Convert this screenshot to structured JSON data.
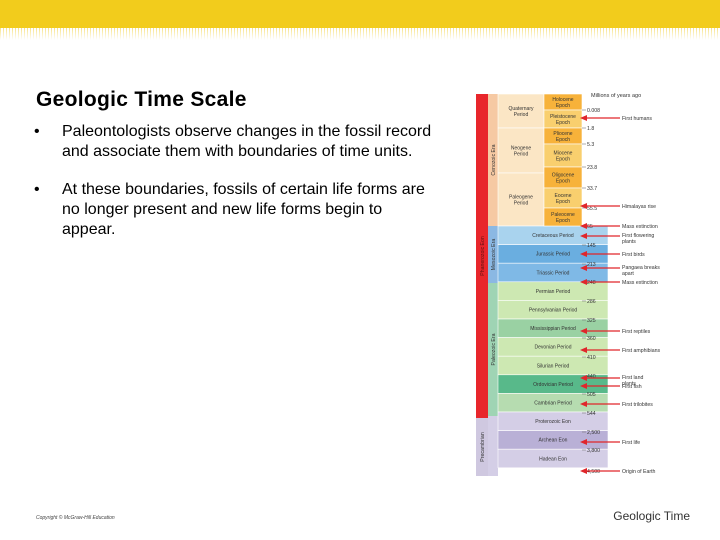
{
  "slide": {
    "title": "Geologic Time Scale",
    "bullets": [
      "Paleontologists observe changes in the fossil record and associate them with boundaries of time units.",
      "At these boundaries, fossils of certain life forms are no longer present and new life forms begin to appear."
    ],
    "bullet_symbol": "•",
    "copyright": "Copyright © McGraw-Hill Education",
    "footer": "Geologic Time"
  },
  "timescale": {
    "header": "Millions of years ago",
    "eons": [
      {
        "label": "Phanerozoic Eon",
        "color": "#e8262b"
      },
      {
        "label": "Precambrian",
        "color": "#cfc8e0"
      }
    ],
    "eras": [
      {
        "label": "Cenozoic Era",
        "color": "#f6c9a3"
      },
      {
        "label": "Mesozoic Era",
        "color": "#8bb8e3"
      },
      {
        "label": "Paleozoic Era",
        "color": "#9fd4b4"
      }
    ],
    "periods": [
      {
        "label": "Quaternary Period",
        "color": "#fbe6c5"
      },
      {
        "label": "Neogene Period",
        "color": "#fbe6c5"
      },
      {
        "label": "Paleogene Period",
        "color": "#fbe6c5"
      },
      {
        "label": "Cretaceous Period",
        "color": "#a9d3ee"
      },
      {
        "label": "Jurassic Period",
        "color": "#6aaee0"
      },
      {
        "label": "Triassic Period",
        "color": "#7fb9e6"
      },
      {
        "label": "Permian Period",
        "color": "#cde8b2"
      },
      {
        "label": "Pennsylvanian Period",
        "color": "#cde8b2"
      },
      {
        "label": "Mississippian Period",
        "color": "#9ad1a3"
      },
      {
        "label": "Devonian Period",
        "color": "#cde8b2"
      },
      {
        "label": "Silurian Period",
        "color": "#cde8b2"
      },
      {
        "label": "Ordovician Period",
        "color": "#58b98a"
      },
      {
        "label": "Cambrian Period",
        "color": "#b6dcb0"
      },
      {
        "label": "Proterozoic Eon",
        "color": "#d4cee6"
      },
      {
        "label": "Archean Eon",
        "color": "#b9b0d6"
      },
      {
        "label": "Hadean Eon",
        "color": "#d4cee6"
      }
    ],
    "epochs": [
      {
        "label": "Holocene Epoch",
        "color": "#f7b23a"
      },
      {
        "label": "Pleistocene Epoch",
        "color": "#f9cf6e"
      },
      {
        "label": "Pliocene Epoch",
        "color": "#f7b23a"
      },
      {
        "label": "Miocene Epoch",
        "color": "#f9cf6e"
      },
      {
        "label": "Oligocene Epoch",
        "color": "#f7b23a"
      },
      {
        "label": "Eocene Epoch",
        "color": "#f9cf6e"
      },
      {
        "label": "Paleocene Epoch",
        "color": "#f7b23a"
      }
    ],
    "ages": [
      "0.008",
      "1.8",
      "5.3",
      "23.8",
      "33.7",
      "55.5",
      "65",
      "145",
      "213",
      "248",
      "286",
      "325",
      "360",
      "410",
      "440",
      "505",
      "544",
      "2,500",
      "3,800",
      "4,500"
    ],
    "events": [
      "First humans",
      "Himalayas rise",
      "Mass extinction",
      "First flowering plants",
      "First birds",
      "Pangaea breaks apart",
      "Mass extinction",
      "First reptiles",
      "First amphibians",
      "First land plants",
      "First fish",
      "First trilobites",
      "First life",
      "Origin of Earth"
    ],
    "arrow_color": "#e0262b"
  }
}
